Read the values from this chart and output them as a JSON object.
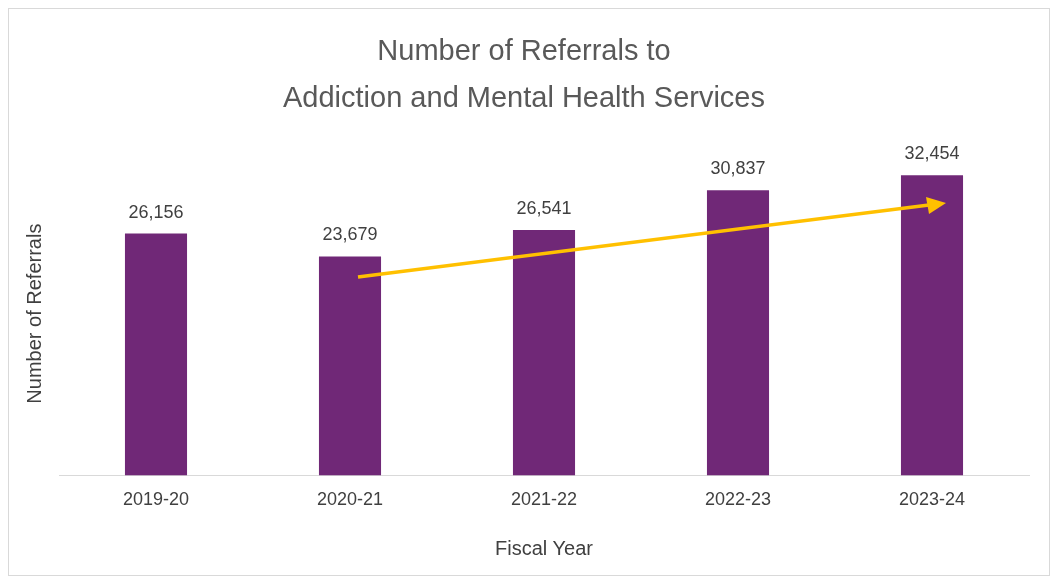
{
  "chart_data": {
    "type": "bar",
    "title": "Number of Referrals to\nAddiction and Mental Health Services",
    "xlabel": "Fiscal Year",
    "ylabel": "Number of Referrals",
    "categories": [
      "2019-20",
      "2020-21",
      "2021-22",
      "2022-23",
      "2023-24"
    ],
    "color": "#702877",
    "values": [
      26156,
      23679,
      26541,
      30837,
      32454
    ],
    "value_labels": [
      "26,156",
      "23,679",
      "26,541",
      "30,837",
      "32,454"
    ],
    "grid": false,
    "legend": false
  }
}
